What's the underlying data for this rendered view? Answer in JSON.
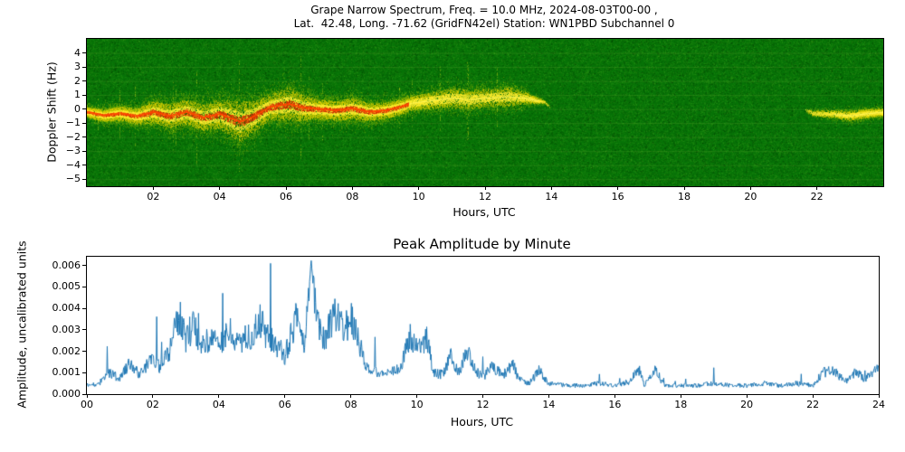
{
  "spectrogram": {
    "title_line1": "Grape Narrow Spectrum, Freq. = 10.0 MHz, 2024-08-03T00-00 ,",
    "title_line2": "Lat.  42.48, Long. -71.62 (GridFN42el) Station: WN1PBD Subchannel 0",
    "xlabel": "Hours, UTC",
    "ylabel": "Doppler Shift (Hz)"
  },
  "amplitude": {
    "title": "Peak Amplitude by Minute",
    "xlabel": "Hours, UTC",
    "ylabel": "Amplitude, uncalibrated units"
  },
  "chart_data": [
    {
      "type": "heatmap",
      "title": "Grape Narrow Spectrum, Freq. = 10.0 MHz, 2024-08-03T00-00 , Lat. 42.48, Long. -71.62 (GridFN42el) Station: WN1PBD Subchannel 0",
      "xlabel": "Hours, UTC",
      "ylabel": "Doppler Shift (Hz)",
      "xlim": [
        0,
        24
      ],
      "ylim": [
        -5.5,
        5.0
      ],
      "x_ticks": {
        "values": [
          2,
          4,
          6,
          8,
          10,
          12,
          14,
          16,
          18,
          20,
          22
        ],
        "labels": [
          "02",
          "04",
          "06",
          "08",
          "10",
          "12",
          "14",
          "16",
          "18",
          "20",
          "22"
        ]
      },
      "y_ticks": {
        "values": [
          4,
          3,
          2,
          1,
          0,
          -1,
          -2,
          -3,
          -4,
          -5
        ],
        "labels": [
          "4",
          "3",
          "2",
          "1",
          "0",
          "−1",
          "−2",
          "−3",
          "−4",
          "−5"
        ]
      },
      "colors": {
        "background": "#077307",
        "low": "#96be00",
        "mid": "#ffec2d",
        "high": "#d72d00"
      },
      "trace": {
        "description": "Doppler trace: columns are [hour_utc, center_doppler_hz, spread_hz, intensity_0_1]. Red core present where intensity>0.8 and hour<9.7; faint yellow band 10-13.5h near +0.5..+0.9 Hz; quiet 14-21.6h; weak band -0.2..-0.45 Hz from ~21.9h to 24h.",
        "columns": [
          "hour",
          "center_hz",
          "spread_hz",
          "intensity"
        ],
        "points": [
          [
            0,
            -0.2,
            0.5,
            0.85
          ],
          [
            0.5,
            -0.45,
            0.6,
            0.85
          ],
          [
            1,
            -0.3,
            0.7,
            0.9
          ],
          [
            1.5,
            -0.5,
            0.8,
            0.9
          ],
          [
            2,
            -0.2,
            1.1,
            0.95
          ],
          [
            2.5,
            -0.5,
            1.2,
            0.95
          ],
          [
            3,
            -0.2,
            1.3,
            0.95
          ],
          [
            3.5,
            -0.6,
            1.3,
            0.95
          ],
          [
            4,
            -0.35,
            1.5,
            1.0
          ],
          [
            4.6,
            -0.9,
            2.1,
            1.0
          ],
          [
            5,
            -0.55,
            1.6,
            1.0
          ],
          [
            5.5,
            0.15,
            1.3,
            1.0
          ],
          [
            6.1,
            0.35,
            1.7,
            1.0
          ],
          [
            6.5,
            0.1,
            1.3,
            1.0
          ],
          [
            7,
            0.0,
            1.0,
            1.0
          ],
          [
            7.5,
            -0.1,
            1.0,
            0.95
          ],
          [
            8,
            0.05,
            1.1,
            0.95
          ],
          [
            8.5,
            -0.2,
            0.9,
            0.9
          ],
          [
            9,
            -0.1,
            0.8,
            0.9
          ],
          [
            9.5,
            0.2,
            0.8,
            0.88
          ],
          [
            9.8,
            0.45,
            0.7,
            0.75
          ],
          [
            10.3,
            0.6,
            0.8,
            0.65
          ],
          [
            11,
            0.8,
            1.0,
            0.6
          ],
          [
            11.5,
            0.7,
            1.0,
            0.6
          ],
          [
            12,
            0.8,
            0.9,
            0.55
          ],
          [
            12.7,
            0.9,
            1.0,
            0.55
          ],
          [
            13.2,
            0.8,
            0.6,
            0.5
          ],
          [
            13.6,
            0.6,
            0.3,
            0.3
          ],
          [
            13.8,
            0.5,
            0.15,
            0.1
          ],
          [
            14,
            0,
            0.1,
            0
          ],
          [
            21.6,
            0,
            0.1,
            0
          ],
          [
            21.9,
            -0.3,
            0.3,
            0.2
          ],
          [
            22.5,
            -0.35,
            0.4,
            0.3
          ],
          [
            23,
            -0.45,
            0.5,
            0.45
          ],
          [
            23.5,
            -0.3,
            0.45,
            0.5
          ],
          [
            24,
            -0.2,
            0.4,
            0.45
          ]
        ]
      }
    },
    {
      "type": "line",
      "title": "Peak Amplitude by Minute",
      "xlabel": "Hours, UTC",
      "ylabel": "Amplitude, uncalibrated units",
      "xlim": [
        0,
        24
      ],
      "ylim": [
        0,
        0.0064
      ],
      "x_ticks": {
        "values": [
          0,
          2,
          4,
          6,
          8,
          10,
          12,
          14,
          16,
          18,
          20,
          22,
          24
        ],
        "labels": [
          "00",
          "02",
          "04",
          "06",
          "08",
          "10",
          "12",
          "14",
          "16",
          "18",
          "20",
          "22",
          "24"
        ]
      },
      "y_ticks": {
        "values": [
          0,
          0.001,
          0.002,
          0.003,
          0.004,
          0.005,
          0.006
        ],
        "labels": [
          "0.000",
          "0.001",
          "0.002",
          "0.003",
          "0.004",
          "0.005",
          "0.006"
        ]
      },
      "line_color": "#1f77b4",
      "grid": false,
      "legend": "none",
      "peak": {
        "hour": 6.8,
        "value": 0.0063
      },
      "envelope_points": [
        [
          0,
          0.0005
        ],
        [
          0.3,
          0.0004
        ],
        [
          0.7,
          0.001
        ],
        [
          1.0,
          0.0007
        ],
        [
          1.3,
          0.0015
        ],
        [
          1.6,
          0.0009
        ],
        [
          2.0,
          0.0018
        ],
        [
          2.2,
          0.0012
        ],
        [
          2.5,
          0.002
        ],
        [
          2.8,
          0.0037
        ],
        [
          3.0,
          0.0025
        ],
        [
          3.2,
          0.0032
        ],
        [
          3.5,
          0.0022
        ],
        [
          3.8,
          0.0028
        ],
        [
          4.0,
          0.0021
        ],
        [
          4.3,
          0.0031
        ],
        [
          4.6,
          0.0024
        ],
        [
          5.0,
          0.0028
        ],
        [
          5.2,
          0.0035
        ],
        [
          5.5,
          0.0026
        ],
        [
          5.8,
          0.0022
        ],
        [
          6.0,
          0.0018
        ],
        [
          6.2,
          0.0028
        ],
        [
          6.4,
          0.0038
        ],
        [
          6.6,
          0.0022
        ],
        [
          6.8,
          0.0063
        ],
        [
          6.95,
          0.0033
        ],
        [
          7.2,
          0.0026
        ],
        [
          7.5,
          0.0038
        ],
        [
          7.8,
          0.003
        ],
        [
          8.0,
          0.0036
        ],
        [
          8.2,
          0.0028
        ],
        [
          8.45,
          0.0012
        ],
        [
          8.8,
          0.001
        ],
        [
          9.1,
          0.0009
        ],
        [
          9.5,
          0.0012
        ],
        [
          9.8,
          0.0027
        ],
        [
          10.0,
          0.0022
        ],
        [
          10.3,
          0.0026
        ],
        [
          10.5,
          0.001
        ],
        [
          10.8,
          0.0009
        ],
        [
          11.0,
          0.0018
        ],
        [
          11.3,
          0.001
        ],
        [
          11.5,
          0.0021
        ],
        [
          11.8,
          0.0011
        ],
        [
          12.0,
          0.0008
        ],
        [
          12.3,
          0.0013
        ],
        [
          12.6,
          0.0009
        ],
        [
          12.9,
          0.0014
        ],
        [
          13.1,
          0.0007
        ],
        [
          13.4,
          0.0005
        ],
        [
          13.7,
          0.0011
        ],
        [
          14.0,
          0.0005
        ],
        [
          14.5,
          0.0004
        ],
        [
          15.0,
          0.0004
        ],
        [
          15.5,
          0.0005
        ],
        [
          16.0,
          0.0004
        ],
        [
          16.5,
          0.0006
        ],
        [
          16.7,
          0.0013
        ],
        [
          16.9,
          0.0004
        ],
        [
          17.2,
          0.0012
        ],
        [
          17.5,
          0.0004
        ],
        [
          18.0,
          0.0004
        ],
        [
          18.5,
          0.0004
        ],
        [
          19.0,
          0.0005
        ],
        [
          19.5,
          0.0004
        ],
        [
          20.0,
          0.0004
        ],
        [
          20.5,
          0.0005
        ],
        [
          21.0,
          0.0004
        ],
        [
          21.5,
          0.0005
        ],
        [
          22.0,
          0.0004
        ],
        [
          22.3,
          0.001
        ],
        [
          22.6,
          0.0011
        ],
        [
          23.0,
          0.0006
        ],
        [
          23.3,
          0.001
        ],
        [
          23.6,
          0.0007
        ],
        [
          24.0,
          0.0012
        ]
      ]
    }
  ]
}
